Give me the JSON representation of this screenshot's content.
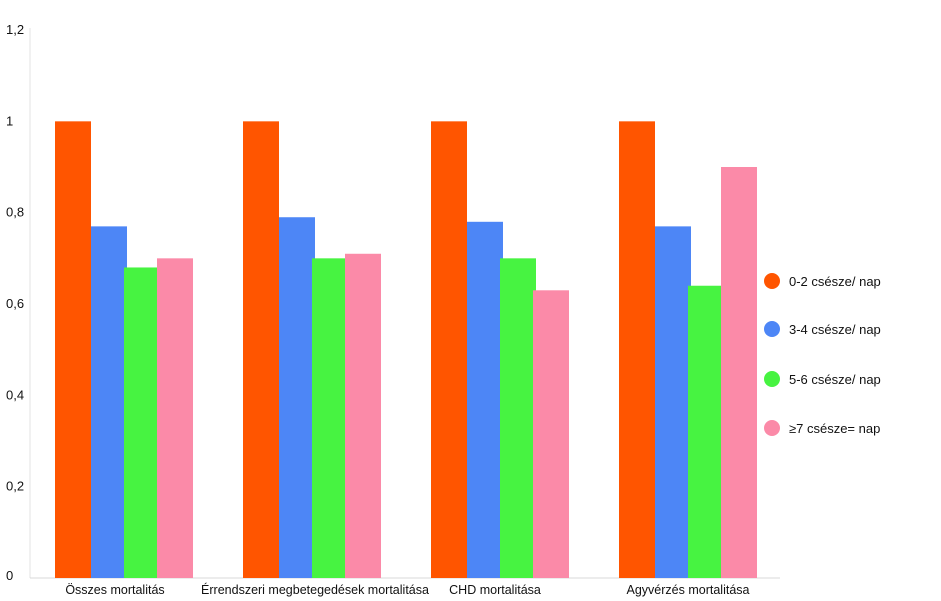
{
  "chart_data": {
    "type": "bar",
    "categories": [
      "Összes mortalitás",
      "Érrendszeri megbetegedések mortalitása",
      "CHD mortalitása",
      "Agyvérzés mortalitása"
    ],
    "series": [
      {
        "name": "0-2 csésze/ nap",
        "values": [
          1.0,
          1.0,
          1.0,
          1.0
        ],
        "color": "#ff5500"
      },
      {
        "name": "3-4 csésze/ nap",
        "values": [
          0.77,
          0.79,
          0.78,
          0.77
        ],
        "color": "#4d86f6"
      },
      {
        "name": "5-6 csésze/ nap",
        "values": [
          0.68,
          0.7,
          0.7,
          0.64
        ],
        "color": "#47f341"
      },
      {
        "name": "≥7 csésze= nap",
        "values": [
          0.7,
          0.71,
          0.63,
          0.9
        ],
        "color": "#fb8aa8"
      }
    ],
    "yticks": [
      "0",
      "0,2",
      "0,4",
      "0,6",
      "0,8",
      "1",
      "1,2"
    ],
    "ylim": [
      0,
      1.2
    ],
    "grid": false,
    "legend_position": "right"
  }
}
